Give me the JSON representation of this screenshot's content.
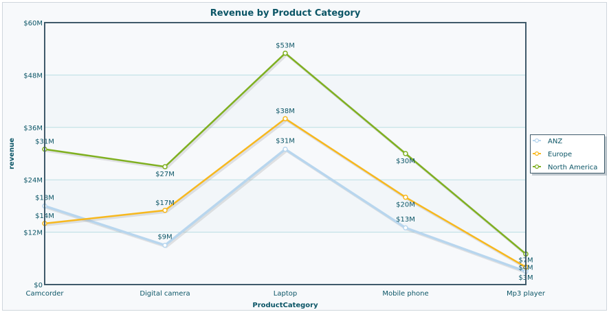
{
  "chart_data": {
    "type": "line",
    "title": "Revenue by Product Category",
    "xlabel": "ProductCategory",
    "ylabel": "revenue",
    "categories": [
      "Camcorder",
      "Digital camera",
      "Laptop",
      "Mobile phone",
      "Mp3 player"
    ],
    "ylim": [
      0,
      60
    ],
    "yticks": [
      0,
      12,
      24,
      36,
      48,
      60
    ],
    "ytick_labels": [
      "$0",
      "$12M",
      "$24M",
      "$36M",
      "$48M",
      "$60M"
    ],
    "grid": true,
    "legend": "right",
    "series": [
      {
        "name": "ANZ",
        "color": "#b8d6ee",
        "values": [
          18,
          9,
          31,
          13,
          3
        ],
        "labels": [
          "$18M",
          "$9M",
          "$31M",
          "$13M",
          "$3M"
        ]
      },
      {
        "name": "Europe",
        "color": "#f7b81e",
        "values": [
          14,
          17,
          38,
          20,
          4
        ],
        "labels": [
          "$14M",
          "$17M",
          "$38M",
          "$20M",
          "$4M"
        ]
      },
      {
        "name": "North America",
        "color": "#7fb020",
        "values": [
          31,
          27,
          53,
          30,
          7
        ],
        "labels": [
          "$31M",
          "$27M",
          "$53M",
          "$30M",
          "$7M"
        ]
      }
    ]
  }
}
